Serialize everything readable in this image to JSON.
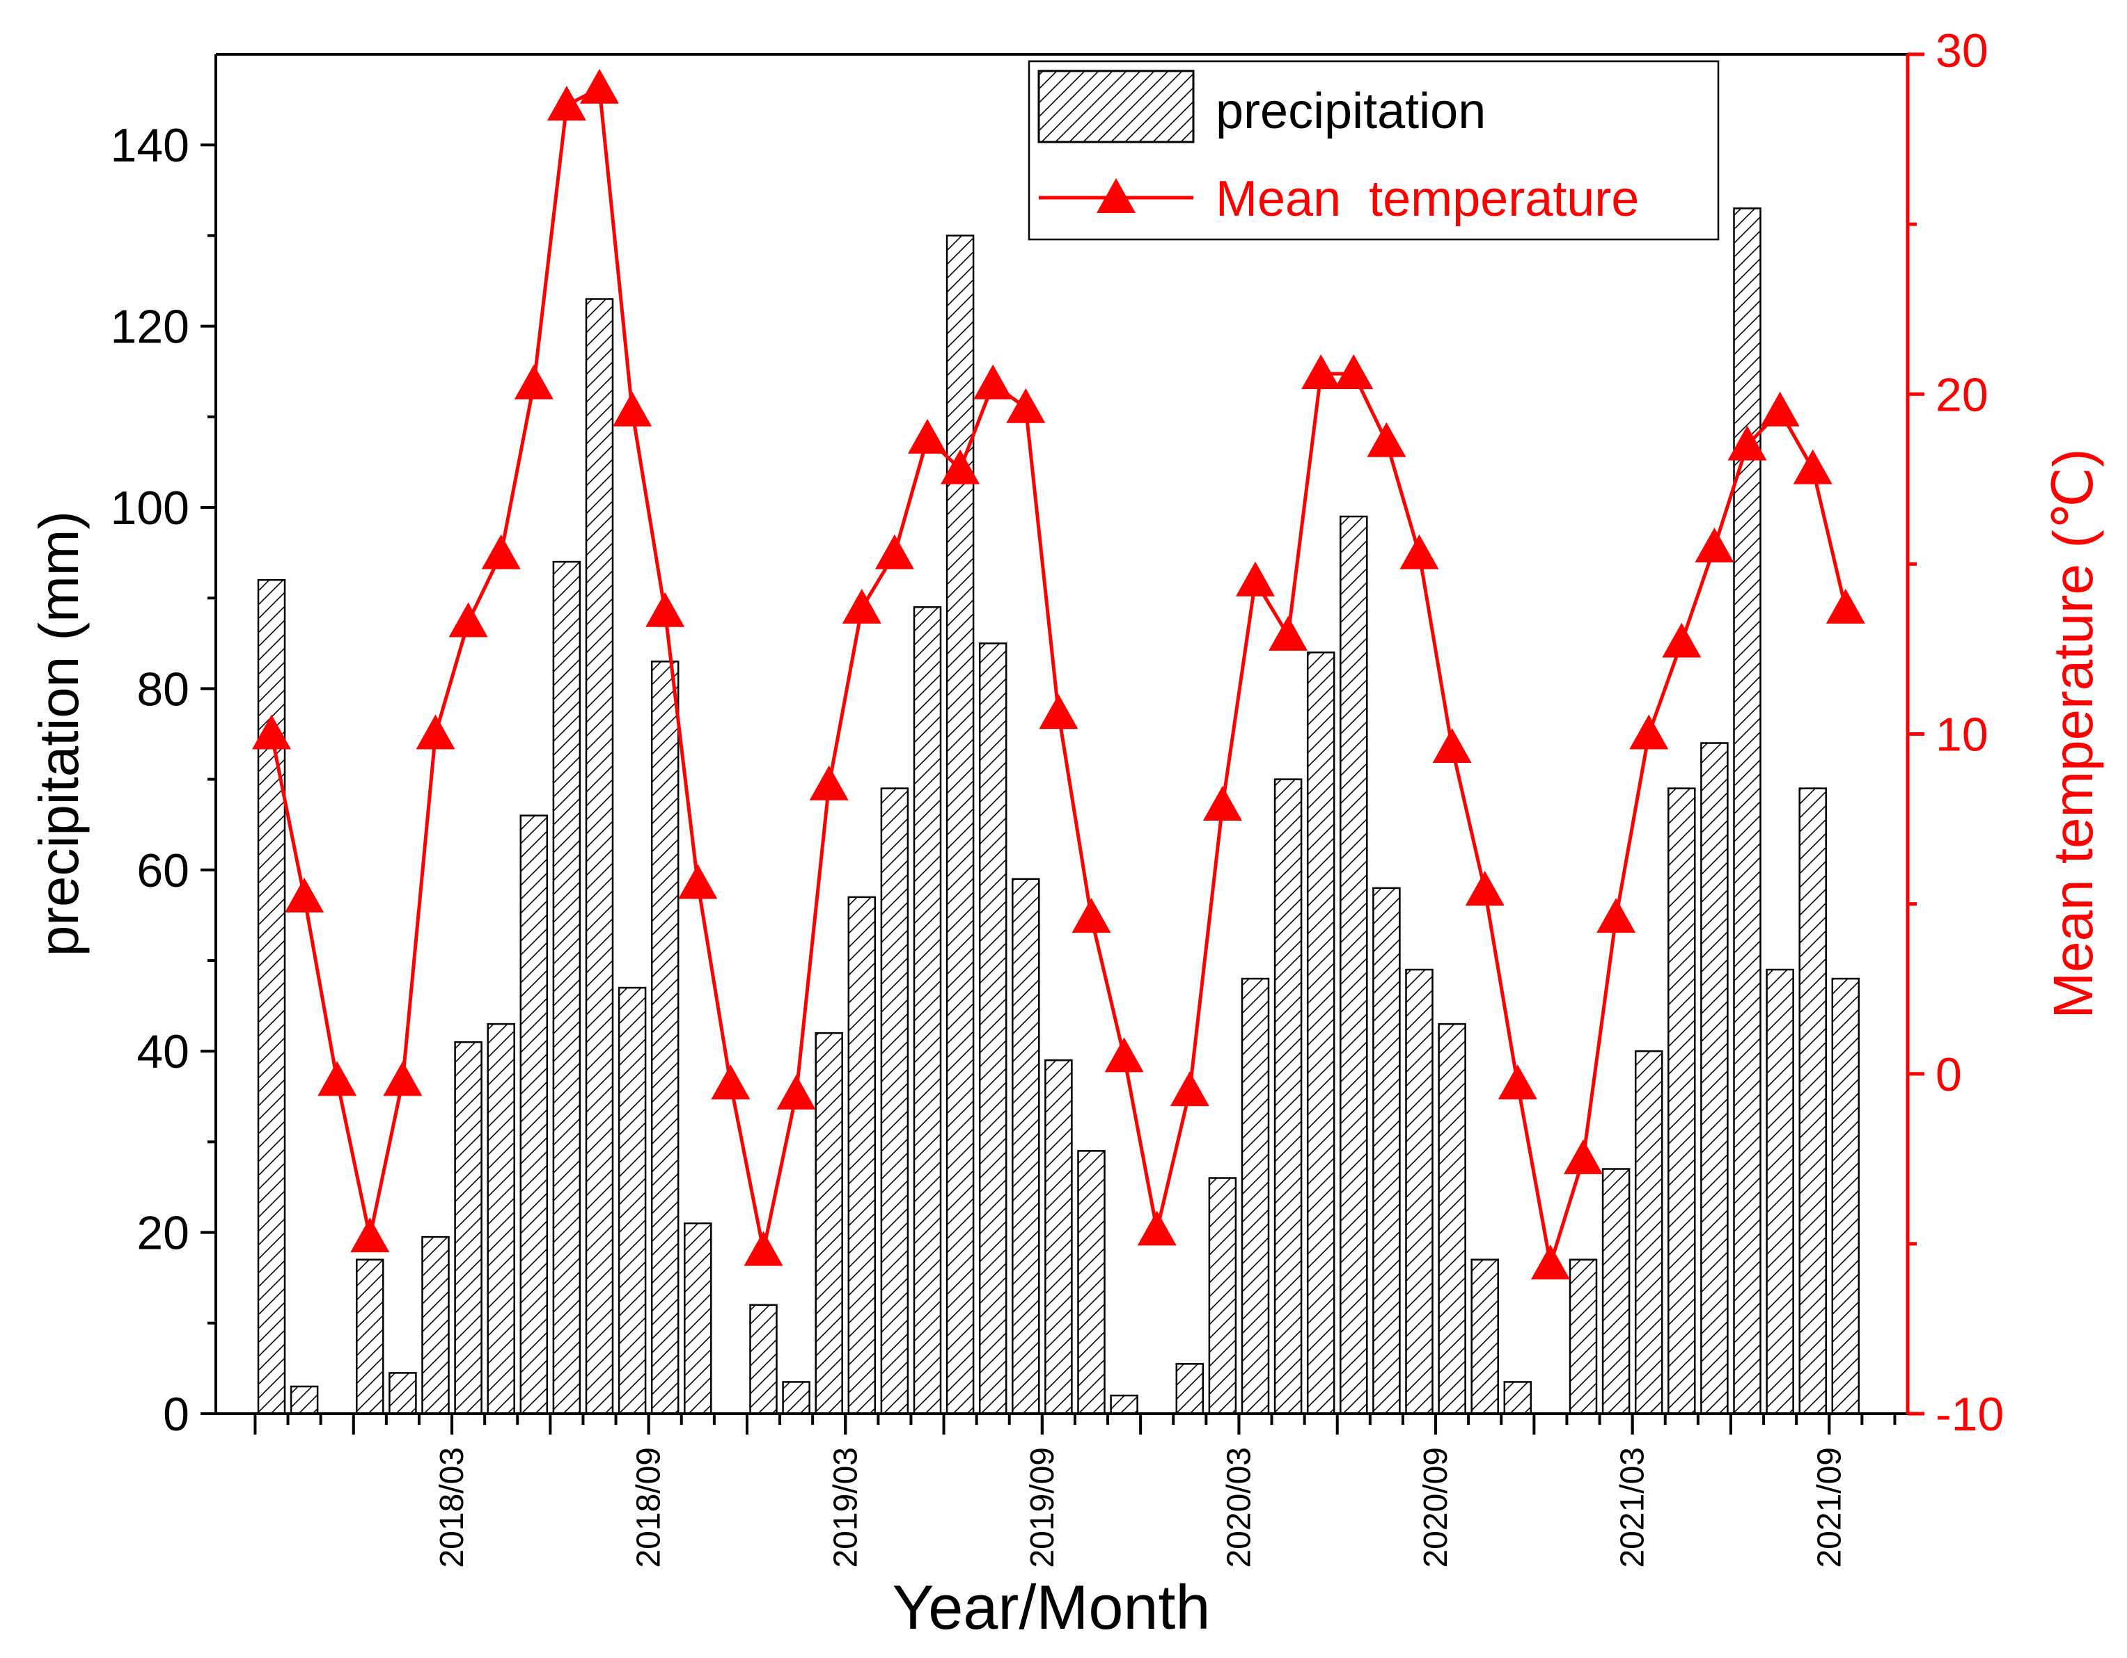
{
  "chart_data": {
    "type": "bar+line",
    "xlabel": "Year/Month",
    "ylabel_left": "precipitation (mm)",
    "ylabel_right": "Mean  temperature (℃)",
    "ylim_left": [
      0,
      150
    ],
    "ylim_right": [
      -10,
      30
    ],
    "yticks_left": [
      "0",
      "20",
      "40",
      "60",
      "80",
      "100",
      "120",
      "140"
    ],
    "yticks_right": [
      "-10",
      "0",
      "10",
      "20",
      "30"
    ],
    "xtick_labels": [
      {
        "label": "2018/03",
        "index": 5
      },
      {
        "label": "2018/09",
        "index": 11
      },
      {
        "label": "2019/03",
        "index": 17
      },
      {
        "label": "2019/09",
        "index": 23
      },
      {
        "label": "2020/03",
        "index": 29
      },
      {
        "label": "2020/09",
        "index": 35
      },
      {
        "label": "2021/03",
        "index": 41
      },
      {
        "label": "2021/09",
        "index": 47
      }
    ],
    "n_months": 49,
    "legend": {
      "placement": "top-right",
      "precipitation_label": "precipitation",
      "temperature_label": "Mean  temperature"
    },
    "series": [
      {
        "name": "precipitation",
        "axis": "left",
        "type": "bar",
        "values": [
          92,
          3,
          null,
          17,
          4.5,
          19.5,
          41,
          43,
          66,
          94,
          123,
          47,
          83,
          21,
          null,
          12,
          3.5,
          42,
          57,
          69,
          89,
          130,
          85,
          59,
          39,
          29,
          2,
          null,
          5.5,
          26,
          48,
          70,
          84,
          99,
          58,
          49,
          43,
          17,
          3.5,
          null,
          17,
          27,
          40,
          69,
          74,
          133,
          49,
          69,
          48
        ]
      },
      {
        "name": "Mean  temperature",
        "axis": "right",
        "type": "line",
        "color": "#ff0000",
        "values": [
          10,
          5.2,
          -0.2,
          -4.8,
          -0.2,
          10,
          13.3,
          15.3,
          20.3,
          28.5,
          29,
          19.5,
          13.6,
          5.6,
          -0.3,
          -5.2,
          -0.6,
          8.5,
          13.7,
          15.3,
          18.7,
          17.8,
          20.3,
          19.6,
          10.6,
          4.6,
          0.5,
          -4.6,
          -0.5,
          7.9,
          14.5,
          12.9,
          20.6,
          20.6,
          18.6,
          15.3,
          9.6,
          5.4,
          -0.3,
          -5.6,
          -2.5,
          4.6,
          10,
          12.7,
          15.5,
          18.5,
          19.5,
          17.8,
          13.7
        ]
      }
    ],
    "colors": {
      "axis_left": "#000000",
      "axis_right": "#ff0000",
      "bar_edge": "#000000",
      "line": "#ff0000"
    }
  }
}
